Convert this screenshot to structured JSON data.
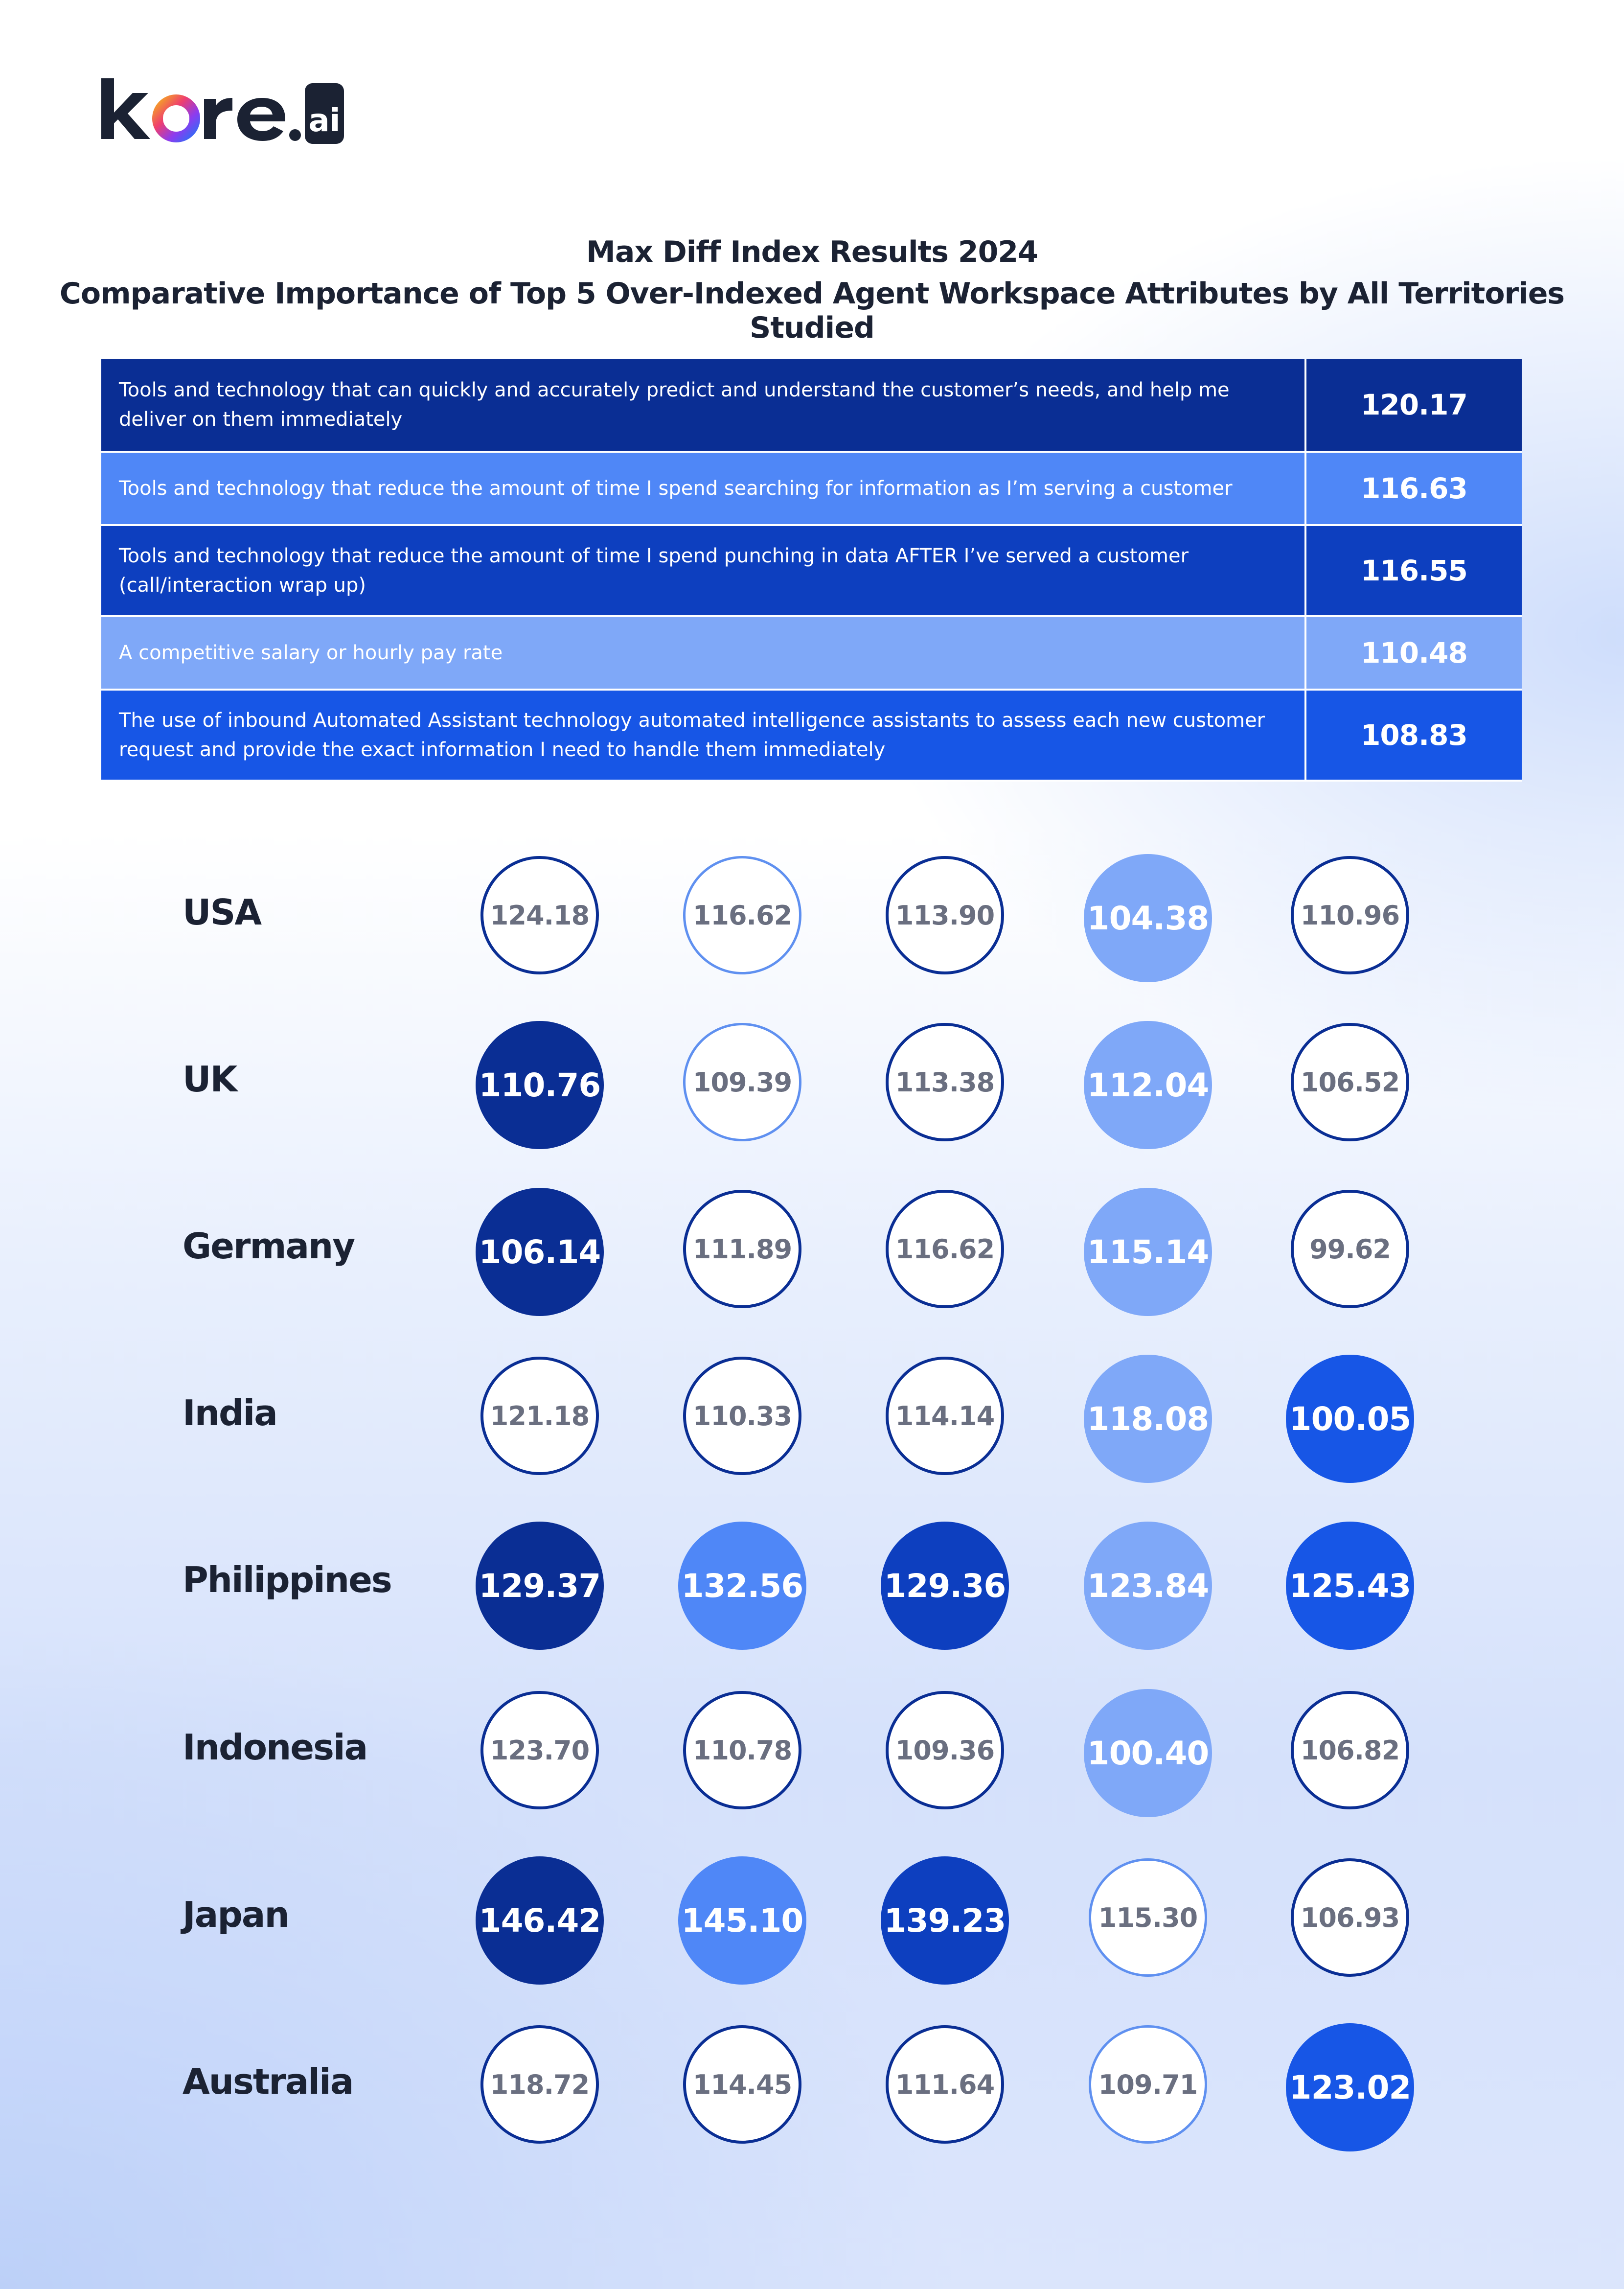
{
  "brand": {
    "name": "kore.ai",
    "word": "kore",
    "suffix": "ai"
  },
  "title": {
    "line1": "Max Diff Index Results 2024",
    "line2": "Comparative Importance of Top 5 Over-Indexed Agent Workspace Attributes by All Territories Studied"
  },
  "colors": {
    "navy": "#0a2e94",
    "royal": "#0d3fbf",
    "bright": "#1756e6",
    "medium": "#4f87f7",
    "light": "#7fa8f8",
    "outline_dark": "#0a2e94",
    "outline_light": "#5f90f0"
  },
  "chart_data": {
    "type": "table",
    "attributes": [
      {
        "label": "Tools and technology that can quickly and accurately predict and understand the customer’s needs, and help me deliver on them immediately",
        "value": "120.17"
      },
      {
        "label": "Tools and technology that reduce the amount of time I spend searching for information as I’m serving a customer",
        "value": "116.63"
      },
      {
        "label": "Tools and technology that reduce the amount of time I spend punching in data AFTER I’ve served a customer (call/interaction wrap up)",
        "value": "116.55"
      },
      {
        "label": "A competitive salary or hourly pay rate",
        "value": "110.48"
      },
      {
        "label": "The use of inbound Automated Assistant technology automated intelligence assistants to assess each new customer request and provide the exact information I need to handle them immediately",
        "value": "108.83"
      }
    ],
    "countries": [
      {
        "name": "USA",
        "values": [
          "124.18",
          "116.62",
          "113.90",
          "104.38",
          "110.96"
        ]
      },
      {
        "name": "UK",
        "values": [
          "110.76",
          "109.39",
          "113.38",
          "112.04",
          "106.52"
        ]
      },
      {
        "name": "Germany",
        "values": [
          "106.14",
          "111.89",
          "116.62",
          "115.14",
          "99.62"
        ]
      },
      {
        "name": "India",
        "values": [
          "121.18",
          "110.33",
          "114.14",
          "118.08",
          "100.05"
        ]
      },
      {
        "name": "Philippines",
        "values": [
          "129.37",
          "132.56",
          "129.36",
          "123.84",
          "125.43"
        ]
      },
      {
        "name": "Indonesia",
        "values": [
          "123.70",
          "110.78",
          "109.36",
          "100.40",
          "106.82"
        ]
      },
      {
        "name": "Japan",
        "values": [
          "146.42",
          "145.10",
          "139.23",
          "115.30",
          "106.93"
        ]
      },
      {
        "name": "Australia",
        "values": [
          "118.72",
          "114.45",
          "111.64",
          "109.71",
          "123.02"
        ]
      }
    ]
  }
}
